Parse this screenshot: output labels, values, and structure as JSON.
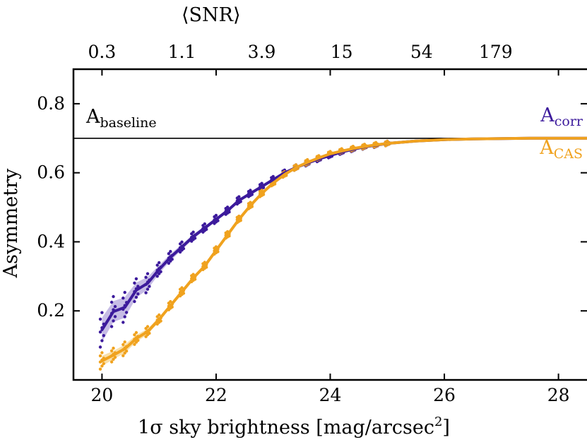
{
  "chart_data": {
    "type": "line",
    "title": "",
    "xlabel": "1σ sky brightness [mag/arcsec²]",
    "xlabel_parts": {
      "main": "1σ sky brightness [mag/arcsec",
      "sup": "2",
      "end": "]"
    },
    "ylabel": "Asymmetry",
    "top_axis_label": "⟨SNR⟩",
    "xlim": [
      19.5,
      28.5
    ],
    "ylim": [
      0.0,
      0.9
    ],
    "x_ticks": [
      20,
      22,
      24,
      26,
      28
    ],
    "x_tick_labels": [
      "20",
      "22",
      "24",
      "26",
      "28"
    ],
    "y_ticks": [
      0.2,
      0.4,
      0.6,
      0.8
    ],
    "y_tick_labels": [
      "0.2",
      "0.4",
      "0.6",
      "0.8"
    ],
    "top_ticks": [
      {
        "x": 20.0,
        "label": "0.3"
      },
      {
        "x": 21.4,
        "label": "1.1"
      },
      {
        "x": 22.8,
        "label": "3.9"
      },
      {
        "x": 24.2,
        "label": "15"
      },
      {
        "x": 25.6,
        "label": "54"
      },
      {
        "x": 26.9,
        "label": "179"
      }
    ],
    "baseline": {
      "value": 0.7,
      "label_main": "A",
      "label_sub": "baseline"
    },
    "series": [
      {
        "name": "A_corr",
        "label_main": "A",
        "label_sub": "corr",
        "color": "#3c1a9c",
        "band_color": "#b3a6dc",
        "x": [
          20.0,
          20.2,
          20.4,
          20.6,
          20.8,
          21.0,
          21.2,
          21.4,
          21.6,
          21.8,
          22.0,
          22.2,
          22.4,
          22.6,
          22.8,
          23.0,
          23.2,
          23.4,
          23.6,
          23.8,
          24.0,
          24.2,
          24.4,
          24.6,
          24.8,
          25.0,
          25.5,
          26.0,
          26.5,
          27.0,
          27.5,
          28.0,
          28.5
        ],
        "y": [
          0.145,
          0.198,
          0.21,
          0.26,
          0.28,
          0.32,
          0.355,
          0.385,
          0.415,
          0.44,
          0.465,
          0.49,
          0.52,
          0.54,
          0.56,
          0.58,
          0.6,
          0.615,
          0.628,
          0.64,
          0.65,
          0.66,
          0.668,
          0.675,
          0.68,
          0.685,
          0.692,
          0.696,
          0.698,
          0.699,
          0.7,
          0.7,
          0.7
        ],
        "band": [
          0.035,
          0.03,
          0.03,
          0.022,
          0.018,
          0.012,
          0.01,
          0.008,
          0.007,
          0.006,
          0.006,
          0.005,
          0.005,
          0.004,
          0.004,
          0.004,
          0.003,
          0.003,
          0.003,
          0.003,
          0.002,
          0.002,
          0.002,
          0.002,
          0.002,
          0.002,
          0.001,
          0.001,
          0.001,
          0.001,
          0.001,
          0.001,
          0.001
        ]
      },
      {
        "name": "A_CAS",
        "label_main": "A",
        "label_sub": "CAS",
        "color": "#f0a21e",
        "band_color": "#f7d48c",
        "x": [
          20.0,
          20.2,
          20.4,
          20.6,
          20.8,
          21.0,
          21.2,
          21.4,
          21.6,
          21.8,
          22.0,
          22.2,
          22.4,
          22.6,
          22.8,
          23.0,
          23.2,
          23.4,
          23.6,
          23.8,
          24.0,
          24.2,
          24.4,
          24.6,
          24.8,
          25.0,
          25.5,
          26.0,
          26.5,
          27.0,
          27.5,
          28.0,
          28.5
        ],
        "y": [
          0.055,
          0.072,
          0.09,
          0.12,
          0.14,
          0.175,
          0.215,
          0.255,
          0.295,
          0.33,
          0.375,
          0.42,
          0.465,
          0.505,
          0.54,
          0.57,
          0.595,
          0.615,
          0.63,
          0.643,
          0.655,
          0.663,
          0.67,
          0.676,
          0.681,
          0.685,
          0.692,
          0.696,
          0.698,
          0.699,
          0.7,
          0.7,
          0.7
        ],
        "band": [
          0.015,
          0.012,
          0.012,
          0.01,
          0.008,
          0.007,
          0.006,
          0.006,
          0.005,
          0.005,
          0.005,
          0.004,
          0.004,
          0.004,
          0.004,
          0.003,
          0.003,
          0.003,
          0.003,
          0.002,
          0.002,
          0.002,
          0.002,
          0.002,
          0.002,
          0.002,
          0.001,
          0.001,
          0.001,
          0.001,
          0.001,
          0.001,
          0.001
        ]
      }
    ]
  }
}
